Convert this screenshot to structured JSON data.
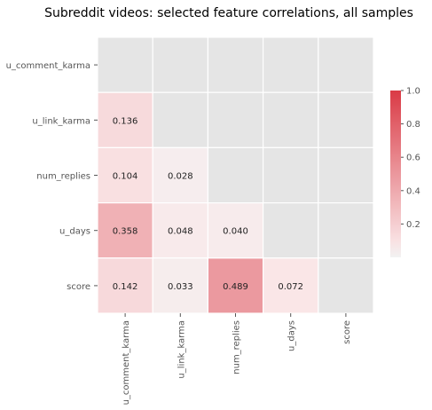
{
  "chart_data": {
    "type": "heatmap",
    "title": "Subreddit videos: selected feature correlations, all samples",
    "rows": [
      "u_comment_karma",
      "u_link_karma",
      "num_replies",
      "u_days",
      "score"
    ],
    "columns": [
      "u_comment_karma",
      "u_link_karma",
      "num_replies",
      "u_days",
      "score"
    ],
    "mask": "upper-triangle-and-diagonal",
    "values": [
      [
        null,
        null,
        null,
        null,
        null
      ],
      [
        0.136,
        null,
        null,
        null,
        null
      ],
      [
        0.104,
        0.028,
        null,
        null,
        null
      ],
      [
        0.358,
        0.048,
        0.04,
        null,
        null
      ],
      [
        0.142,
        0.033,
        0.489,
        0.072,
        null
      ]
    ],
    "value_labels": [
      [
        null,
        null,
        null,
        null,
        null
      ],
      [
        "0.136",
        null,
        null,
        null,
        null
      ],
      [
        "0.104",
        "0.028",
        null,
        null,
        null
      ],
      [
        "0.358",
        "0.048",
        "0.040",
        null,
        null
      ],
      [
        "0.142",
        "0.033",
        "0.489",
        "0.072",
        null
      ]
    ],
    "colorbar": {
      "range": [
        0,
        1.0
      ],
      "ticks": [
        0.2,
        0.4,
        0.6,
        0.8,
        1.0
      ],
      "tick_labels": [
        "0.2",
        "0.4",
        "0.6",
        "0.8",
        "1.0"
      ],
      "low_color": "#f2f2f2",
      "high_color": "#da3b46"
    },
    "masked_color": "#e5e5e5",
    "grid": false,
    "legend": "colorbar-right"
  }
}
